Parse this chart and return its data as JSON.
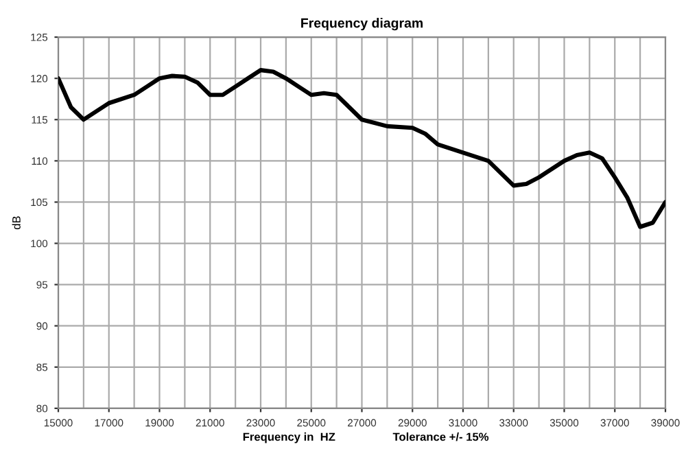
{
  "chart_data": {
    "type": "line",
    "title": "Frequency diagram",
    "xlabel": "Frequency in  HZ",
    "ylabel": "dB",
    "annotations": [
      "Tolerance +/- 15%"
    ],
    "x": [
      15000,
      15500,
      16000,
      16500,
      17000,
      18000,
      18500,
      19000,
      19500,
      20000,
      20500,
      21000,
      21500,
      22000,
      22500,
      23000,
      23500,
      24000,
      24500,
      25000,
      25500,
      26000,
      26500,
      27000,
      28000,
      29000,
      29500,
      30000,
      31000,
      32000,
      32500,
      33000,
      33500,
      34000,
      35000,
      35500,
      36000,
      36500,
      37000,
      37500,
      38000,
      38500,
      39000
    ],
    "series": [
      {
        "color": "#000000",
        "values": [
          120,
          116.5,
          115,
          116,
          117,
          118,
          119,
          120,
          120.3,
          120.2,
          119.5,
          118,
          118,
          119,
          120,
          121,
          120.8,
          120,
          119,
          118,
          118.2,
          118,
          116.5,
          115,
          114.2,
          114,
          113.3,
          112,
          111,
          110,
          108.5,
          107,
          107.2,
          108,
          110,
          110.7,
          111,
          110.3,
          108,
          105.5,
          102,
          102.5,
          105
        ]
      }
    ],
    "xlim": [
      15000,
      39000
    ],
    "ylim": [
      80,
      125
    ],
    "xticks": [
      15000,
      17000,
      19000,
      21000,
      23000,
      25000,
      27000,
      29000,
      31000,
      33000,
      35000,
      37000,
      39000
    ],
    "yticks": [
      80,
      85,
      90,
      95,
      100,
      105,
      110,
      115,
      120,
      125
    ],
    "grid": true,
    "marker": "none",
    "line_style": "solid"
  }
}
